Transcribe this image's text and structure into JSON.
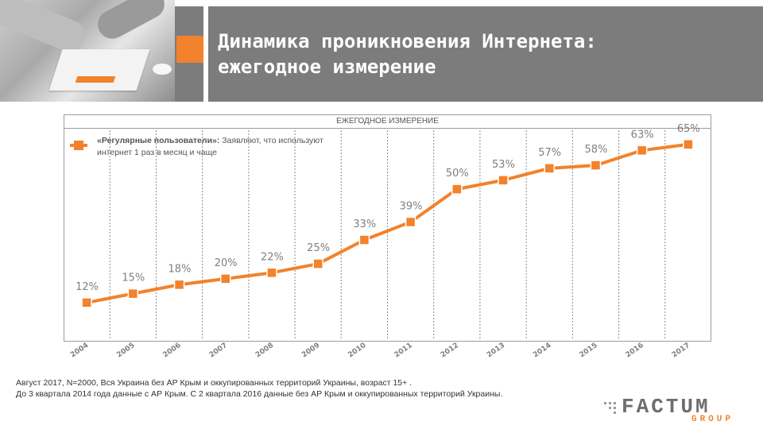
{
  "header": {
    "title_line1": "Динамика проникновения Интернета:",
    "title_line2": "ежегодное измерение"
  },
  "colors": {
    "accent": "#f2822b",
    "header_gray": "#7c7c7c",
    "label_gray": "#7f7f7f"
  },
  "chart_data": {
    "type": "line",
    "title": "ЕЖЕГОДНОЕ ИЗМЕРЕНИЕ",
    "x": [
      "2004",
      "2005",
      "2006",
      "2007",
      "2008",
      "2009",
      "2010",
      "2011",
      "2012",
      "2013",
      "2014",
      "2015",
      "2016",
      "2017"
    ],
    "series": [
      {
        "name": "«Регулярные пользователи»:",
        "description": "Заявляют, что используют интернет 1 раз в месяц и чаще",
        "values": [
          12,
          15,
          18,
          20,
          22,
          25,
          33,
          39,
          50,
          53,
          57,
          58,
          63,
          65
        ],
        "labels": [
          "12%",
          "15%",
          "18%",
          "20%",
          "22%",
          "25%",
          "33%",
          "39%",
          "50%",
          "53%",
          "57%",
          "58%",
          "63%",
          "65%"
        ]
      }
    ],
    "ylim": [
      0,
      70
    ],
    "grid": "vertical-dashed",
    "legend_position": "top-left"
  },
  "footnotes": [
    "Август 2017, N=2000, Вся Украина без АР Крым и оккупированных территорий Украины, возраст 15+ .",
    "До 3 квартала 2014 года данные с АР Крым. С 2 квартала 2016 данные без АР Крым и оккупированных территорий Украины."
  ],
  "logo": {
    "main": "FACTUM",
    "sub": "GROUP"
  }
}
